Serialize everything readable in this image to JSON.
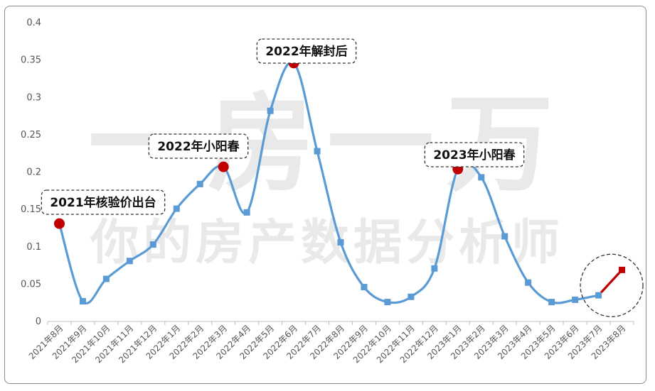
{
  "chart_data": {
    "type": "line",
    "categories": [
      "2021年8月",
      "2021年9月",
      "2021年10月",
      "2021年11月",
      "2021年12月",
      "2022年1月",
      "2022年2月",
      "2022年3月",
      "2022年4月",
      "2022年5月",
      "2022年6月",
      "2022年7月",
      "2022年8月",
      "2022年9月",
      "2022年10月",
      "2022年11月",
      "2022年12月",
      "2023年1月",
      "2023年2月",
      "2023年3月",
      "2023年4月",
      "2023年5月",
      "2023年6月",
      "2023年7月",
      "2023年8月"
    ],
    "values": [
      0.131,
      0.027,
      0.057,
      0.081,
      0.103,
      0.151,
      0.184,
      0.207,
      0.146,
      0.282,
      0.346,
      0.228,
      0.106,
      0.046,
      0.026,
      0.033,
      0.071,
      0.204,
      0.193,
      0.114,
      0.052,
      0.026,
      0.029,
      0.035,
      0.069
    ],
    "ylim": [
      0,
      0.4
    ],
    "yticks": [
      "0",
      "0.05",
      "0.1",
      "0.15",
      "0.2",
      "0.25",
      "0.3",
      "0.35",
      "0.4"
    ],
    "grid": false,
    "line_color": "#5b9bd5",
    "highlight_color": "#c00000",
    "highlight_from_index": 23,
    "annotations": [
      {
        "text": "2021年核验价出台",
        "index": 0
      },
      {
        "text": "2022年小阳春",
        "index": 7
      },
      {
        "text": "2022年解封后",
        "index": 10
      },
      {
        "text": "2023年小阳春",
        "index": 17
      }
    ],
    "watermark": [
      "一房一万",
      "你的房产数据分析师"
    ]
  }
}
